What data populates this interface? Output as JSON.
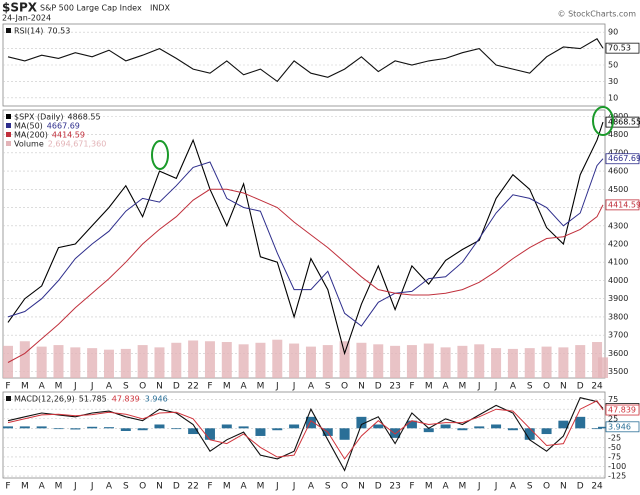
{
  "credit": "© StockCharts.com",
  "chart_data": [
    {
      "type": "line",
      "ylim": [
        0,
        100
      ],
      "yticks": [
        10,
        30,
        50,
        70,
        90
      ],
      "grid": true,
      "series": [
        {
          "name": "RSI(14)",
          "color": "#111111",
          "values": [
            60,
            55,
            62,
            58,
            65,
            60,
            68,
            55,
            62,
            70,
            58,
            45,
            40,
            55,
            38,
            45,
            30,
            55,
            40,
            35,
            45,
            60,
            42,
            55,
            50,
            55,
            58,
            65,
            70,
            50,
            45,
            40,
            60,
            72,
            70,
            82,
            70.53
          ]
        }
      ]
    },
    {
      "type": "line",
      "title": "$SPX",
      "subtitle": "S&P 500 Large Cap Index",
      "exchange": "INDX",
      "date": "24-Jan-2024",
      "categories": [
        "F",
        "M",
        "A",
        "M",
        "J",
        "J",
        "A",
        "S",
        "O",
        "N",
        "D",
        "22",
        "F",
        "M",
        "A",
        "M",
        "J",
        "J",
        "A",
        "S",
        "O",
        "N",
        "D",
        "23",
        "F",
        "M",
        "A",
        "M",
        "J",
        "J",
        "A",
        "S",
        "O",
        "N",
        "D",
        "24",
        null
      ],
      "ylim": [
        3465,
        4935
      ],
      "yticks": [
        3500,
        3600,
        3700,
        3800,
        3900,
        4000,
        4100,
        4200,
        4300,
        4400,
        4500,
        4600,
        4700,
        4800,
        4900
      ],
      "y2lim": [
        0,
        35000000000
      ],
      "grid": true,
      "series": [
        {
          "name": "$SPX (Daily)",
          "color": "#000000",
          "values": [
            3770,
            3900,
            3970,
            4180,
            4200,
            4300,
            4400,
            4520,
            4350,
            4600,
            4560,
            4770,
            4500,
            4300,
            4530,
            4130,
            4100,
            3800,
            4120,
            3950,
            3600,
            3870,
            4080,
            3840,
            4080,
            3980,
            4110,
            4170,
            4220,
            4450,
            4580,
            4500,
            4290,
            4200,
            4580,
            4770,
            4868.55
          ]
        },
        {
          "name": "MA(50)",
          "color": "#2e2e8c",
          "values": [
            3800,
            3830,
            3900,
            4000,
            4120,
            4200,
            4270,
            4380,
            4450,
            4430,
            4520,
            4620,
            4650,
            4450,
            4400,
            4380,
            4150,
            3950,
            3950,
            4050,
            3820,
            3750,
            3880,
            3930,
            3940,
            4010,
            4020,
            4100,
            4230,
            4370,
            4470,
            4450,
            4400,
            4300,
            4370,
            4630,
            4667.69
          ]
        },
        {
          "name": "MA(200)",
          "color": "#c0303c",
          "values": [
            3550,
            3600,
            3680,
            3760,
            3850,
            3930,
            4010,
            4100,
            4200,
            4280,
            4350,
            4440,
            4500,
            4500,
            4480,
            4440,
            4400,
            4320,
            4250,
            4180,
            4100,
            4020,
            3950,
            3930,
            3920,
            3920,
            3930,
            3950,
            3990,
            4050,
            4120,
            4180,
            4230,
            4240,
            4280,
            4350,
            4414.59
          ]
        },
        {
          "name": "Volume",
          "color": "#e3b4b8",
          "type": "bar",
          "axis": "y2",
          "values": [
            4200000000,
            4800000000,
            4100000000,
            4300000000,
            4000000000,
            3900000000,
            3700000000,
            3800000000,
            4300000000,
            4000000000,
            4600000000,
            4900000000,
            4800000000,
            4700000000,
            4400000000,
            4600000000,
            5000000000,
            4500000000,
            4100000000,
            4300000000,
            4800000000,
            4600000000,
            4400000000,
            4200000000,
            4300000000,
            4500000000,
            4000000000,
            4200000000,
            4400000000,
            3900000000,
            3800000000,
            3900000000,
            4100000000,
            4000000000,
            4300000000,
            4700000000,
            2694671360
          ]
        }
      ]
    },
    {
      "type": "line",
      "categories": [
        "F",
        "M",
        "A",
        "M",
        "J",
        "J",
        "A",
        "S",
        "O",
        "N",
        "D",
        "22",
        "F",
        "M",
        "A",
        "M",
        "J",
        "J",
        "A",
        "S",
        "O",
        "N",
        "D",
        "23",
        "F",
        "M",
        "A",
        "M",
        "J",
        "J",
        "A",
        "S",
        "O",
        "N",
        "D",
        "24",
        null
      ],
      "ylim": [
        -130,
        95
      ],
      "yticks": [
        75,
        50,
        25,
        0,
        -25,
        -50,
        -75,
        -100,
        -125
      ],
      "grid": true,
      "series": [
        {
          "name": "MACD(12,26,9)",
          "color": "#111111",
          "values": [
            20,
            30,
            40,
            35,
            30,
            40,
            45,
            30,
            20,
            50,
            40,
            10,
            -60,
            -30,
            -10,
            -70,
            -80,
            -60,
            50,
            -30,
            -110,
            10,
            30,
            -40,
            40,
            0,
            25,
            10,
            35,
            60,
            40,
            -30,
            -60,
            -20,
            80,
            70,
            51.785
          ]
        },
        {
          "color": "#d0343c",
          "values": [
            15,
            25,
            35,
            37,
            33,
            36,
            42,
            37,
            25,
            40,
            42,
            25,
            -30,
            -40,
            -15,
            -50,
            -75,
            -70,
            20,
            -10,
            -80,
            -20,
            20,
            -15,
            20,
            10,
            15,
            15,
            30,
            50,
            45,
            0,
            -45,
            -40,
            50,
            72,
            47.839
          ]
        },
        {
          "color": "#2a6f97",
          "type": "bar",
          "values": [
            5,
            5,
            5,
            -2,
            -3,
            4,
            3,
            -7,
            -5,
            10,
            -2,
            -15,
            -30,
            10,
            5,
            -20,
            -5,
            10,
            30,
            -20,
            -30,
            30,
            10,
            -25,
            20,
            -10,
            10,
            -5,
            5,
            10,
            -5,
            -30,
            -15,
            20,
            30,
            -2,
            3.946
          ]
        }
      ]
    }
  ]
}
